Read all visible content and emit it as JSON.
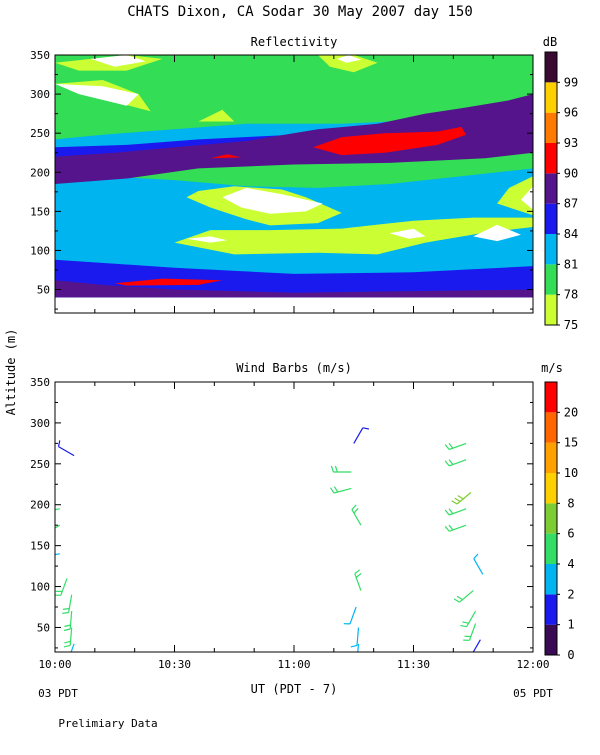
{
  "title": "CHATS Dixon, CA  Sodar  30 May 2007  day 150",
  "y_axis_label": "Altitude (m)",
  "x_axis_label": "UT  (PDT - 7)",
  "x_left_note": "03 PDT",
  "x_right_note": "05 PDT",
  "footer_note": "Prelimiary Data",
  "chart_data": [
    {
      "type": "heatmap",
      "title": "Reflectivity",
      "colorbar_unit": "dB",
      "x_ticks": [
        "10:00",
        "10:30",
        "11:00",
        "11:30",
        "12:00"
      ],
      "xlim_hours": [
        10.0,
        12.0
      ],
      "ylim": [
        20,
        350
      ],
      "y_ticks": [
        50,
        100,
        150,
        200,
        250,
        300,
        350
      ],
      "levels": [
        {
          "value": 75,
          "color": "#ccff33"
        },
        {
          "value": 78,
          "color": "#33dd55"
        },
        {
          "value": 81,
          "color": "#00b4f0"
        },
        {
          "value": 84,
          "color": "#1a1aee"
        },
        {
          "value": 87,
          "color": "#55148c"
        },
        {
          "value": 90,
          "color": "#ff0000"
        },
        {
          "value": 93,
          "color": "#ff7a00"
        },
        {
          "value": 96,
          "color": "#ffd000"
        },
        {
          "value": 99,
          "color": "#3a0a33"
        }
      ],
      "data_altitude_range": [
        40,
        350
      ],
      "base_level_color": "#ccff33",
      "bands": [
        {
          "level": 78,
          "pts": [
            [
              10.0,
              40
            ],
            [
              10.5,
              40
            ],
            [
              11.0,
              40
            ],
            [
              11.5,
              40
            ],
            [
              12.0,
              40
            ],
            [
              12.0,
              352
            ],
            [
              10.0,
              352
            ]
          ]
        },
        {
          "level": 81,
          "pts": [
            [
              10.0,
              40
            ],
            [
              12.0,
              40
            ],
            [
              12.0,
              205
            ],
            [
              11.7,
              195
            ],
            [
              11.4,
              185
            ],
            [
              11.1,
              180
            ],
            [
              10.8,
              182
            ],
            [
              10.5,
              190
            ],
            [
              10.2,
              195
            ],
            [
              10.0,
              200
            ]
          ]
        },
        {
          "level": 84,
          "pts": [
            [
              10.0,
              40
            ],
            [
              12.0,
              40
            ],
            [
              12.0,
              80
            ],
            [
              11.5,
              72
            ],
            [
              11.0,
              70
            ],
            [
              10.5,
              78
            ],
            [
              10.0,
              88
            ]
          ]
        },
        {
          "level": 87,
          "pts": [
            [
              10.0,
              40
            ],
            [
              12.0,
              40
            ],
            [
              12.0,
              50
            ],
            [
              11.5,
              48
            ],
            [
              11.0,
              46
            ],
            [
              10.5,
              50
            ],
            [
              10.2,
              56
            ],
            [
              10.0,
              62
            ]
          ]
        },
        {
          "level": 90,
          "pts": [
            [
              10.25,
              58
            ],
            [
              10.45,
              64
            ],
            [
              10.7,
              62
            ],
            [
              10.6,
              56
            ],
            [
              10.3,
              55
            ]
          ]
        },
        {
          "level": 81,
          "pts": [
            [
              10.0,
              215
            ],
            [
              10.4,
              228
            ],
            [
              10.8,
              232
            ],
            [
              11.2,
              235
            ],
            [
              11.6,
              230
            ],
            [
              12.0,
              238
            ],
            [
              12.0,
              262
            ],
            [
              11.6,
              268
            ],
            [
              11.2,
              262
            ],
            [
              10.8,
              262
            ],
            [
              10.5,
              255
            ],
            [
              10.2,
              248
            ],
            [
              10.0,
              242
            ]
          ]
        },
        {
          "level": 84,
          "pts": [
            [
              10.0,
              205
            ],
            [
              10.3,
              213
            ],
            [
              10.6,
              218
            ],
            [
              11.0,
              220
            ],
            [
              11.4,
              218
            ],
            [
              11.8,
              222
            ],
            [
              12.0,
              228
            ],
            [
              12.0,
              250
            ],
            [
              11.7,
              258
            ],
            [
              11.4,
              258
            ],
            [
              11.0,
              248
            ],
            [
              10.6,
              242
            ],
            [
              10.3,
              235
            ],
            [
              10.0,
              232
            ]
          ]
        },
        {
          "level": 87,
          "pts": [
            [
              10.0,
              185
            ],
            [
              10.3,
              192
            ],
            [
              10.6,
              205
            ],
            [
              11.0,
              210
            ],
            [
              11.4,
              212
            ],
            [
              11.8,
              218
            ],
            [
              12.0,
              225
            ],
            [
              12.0,
              300
            ],
            [
              11.9,
              292
            ],
            [
              11.7,
              282
            ],
            [
              11.55,
              275
            ],
            [
              11.35,
              262
            ],
            [
              11.1,
              255
            ],
            [
              10.8,
              240
            ],
            [
              10.5,
              232
            ],
            [
              10.25,
              225
            ],
            [
              10.0,
              220
            ]
          ]
        },
        {
          "level": 90,
          "pts": [
            [
              11.08,
              232
            ],
            [
              11.2,
              245
            ],
            [
              11.38,
              250
            ],
            [
              11.6,
              252
            ],
            [
              11.7,
              258
            ],
            [
              11.72,
              248
            ],
            [
              11.6,
              235
            ],
            [
              11.38,
              225
            ],
            [
              11.2,
              222
            ]
          ]
        },
        {
          "level": 90,
          "pts": [
            [
              10.65,
              218
            ],
            [
              10.72,
              223
            ],
            [
              10.78,
              219
            ]
          ]
        },
        {
          "level": 75,
          "pts": [
            [
              10.5,
              110
            ],
            [
              10.75,
              95
            ],
            [
              11.1,
              97
            ],
            [
              11.35,
              95
            ],
            [
              11.55,
              110
            ],
            [
              11.8,
              123
            ],
            [
              12.0,
              130
            ],
            [
              12.0,
              142
            ],
            [
              11.75,
              142
            ],
            [
              11.5,
              138
            ],
            [
              11.2,
              128
            ],
            [
              10.9,
              126
            ],
            [
              10.65,
              126
            ]
          ]
        },
        {
          "level": 75,
          "pts": [
            [
              10.75,
              182
            ],
            [
              10.95,
              178
            ],
            [
              11.05,
              168
            ],
            [
              11.2,
              148
            ],
            [
              11.1,
              135
            ],
            [
              10.9,
              132
            ],
            [
              10.8,
              140
            ],
            [
              10.65,
              155
            ],
            [
              10.55,
              168
            ],
            [
              10.6,
              176
            ]
          ]
        },
        {
          "level": 75,
          "pts": [
            [
              10.0,
              313
            ],
            [
              10.25,
              290
            ],
            [
              10.4,
              278
            ],
            [
              10.35,
              300
            ],
            [
              10.2,
              318
            ]
          ]
        },
        {
          "level": 75,
          "pts": [
            [
              10.0,
              340
            ],
            [
              10.3,
              350
            ],
            [
              10.45,
              345
            ],
            [
              10.3,
              330
            ],
            [
              10.1,
              330
            ]
          ]
        },
        {
          "level": 75,
          "pts": [
            [
              11.1,
              350
            ],
            [
              11.25,
              350
            ],
            [
              11.35,
              340
            ],
            [
              11.25,
              328
            ],
            [
              11.15,
              335
            ]
          ]
        },
        {
          "level": 75,
          "pts": [
            [
              11.85,
              160
            ],
            [
              12.0,
              145
            ],
            [
              12.0,
              195
            ],
            [
              11.9,
              180
            ]
          ]
        },
        {
          "level": 75,
          "pts": [
            [
              10.6,
              265
            ],
            [
              10.7,
              280
            ],
            [
              10.75,
              265
            ]
          ]
        }
      ],
      "white_patches": [
        [
          [
            10.0,
            313
          ],
          [
            10.1,
            300
          ],
          [
            10.3,
            285
          ],
          [
            10.35,
            300
          ],
          [
            10.2,
            310
          ]
        ],
        [
          [
            10.15,
            345
          ],
          [
            10.3,
            350
          ],
          [
            10.38,
            342
          ],
          [
            10.25,
            335
          ]
        ],
        [
          [
            10.8,
            180
          ],
          [
            10.95,
            172
          ],
          [
            11.12,
            160
          ],
          [
            11.05,
            150
          ],
          [
            10.9,
            147
          ],
          [
            10.78,
            155
          ],
          [
            10.7,
            168
          ]
        ],
        [
          [
            10.55,
            115
          ],
          [
            10.65,
            110
          ],
          [
            10.72,
            113
          ],
          [
            10.65,
            118
          ]
        ],
        [
          [
            11.4,
            122
          ],
          [
            11.48,
            115
          ],
          [
            11.55,
            118
          ],
          [
            11.5,
            128
          ]
        ],
        [
          [
            11.75,
            118
          ],
          [
            11.85,
            112
          ],
          [
            11.95,
            120
          ],
          [
            11.85,
            133
          ]
        ],
        [
          [
            11.95,
            165
          ],
          [
            12.0,
            152
          ],
          [
            12.0,
            182
          ]
        ],
        [
          [
            11.18,
            345
          ],
          [
            11.22,
            340
          ],
          [
            11.28,
            344
          ],
          [
            11.23,
            350
          ]
        ]
      ]
    },
    {
      "type": "barbs",
      "title": "Wind Barbs (m/s)",
      "colorbar_unit": "m/s",
      "x_ticks": [
        "10:00",
        "10:30",
        "11:00",
        "11:30",
        "12:00"
      ],
      "xlim_hours": [
        10.0,
        12.0
      ],
      "ylim": [
        20,
        350
      ],
      "y_ticks": [
        50,
        100,
        150,
        200,
        250,
        300,
        350
      ],
      "speed_levels": [
        {
          "value": 0,
          "color": "#3a0a55"
        },
        {
          "value": 1,
          "color": "#1a1aee"
        },
        {
          "value": 2,
          "color": "#00b4f0"
        },
        {
          "value": 4,
          "color": "#33dd66"
        },
        {
          "value": 6,
          "color": "#7dcc33"
        },
        {
          "value": 8,
          "color": "#ffd000"
        },
        {
          "value": 10,
          "color": "#ffa000"
        },
        {
          "value": 15,
          "color": "#ff6600"
        },
        {
          "value": 20,
          "color": "#ff0000"
        }
      ],
      "barbs": [
        {
          "t": 10.08,
          "alt": 260,
          "speed": 1.5,
          "dir": 300
        },
        {
          "t": 10.02,
          "alt": 195,
          "speed": 4.5,
          "dir": 260
        },
        {
          "t": 10.02,
          "alt": 175,
          "speed": 4.5,
          "dir": 240
        },
        {
          "t": 10.02,
          "alt": 140,
          "speed": 2.5,
          "dir": 260
        },
        {
          "t": 10.05,
          "alt": 110,
          "speed": 4.5,
          "dir": 200
        },
        {
          "t": 10.07,
          "alt": 90,
          "speed": 4.5,
          "dir": 190
        },
        {
          "t": 10.07,
          "alt": 70,
          "speed": 4.5,
          "dir": 185
        },
        {
          "t": 10.07,
          "alt": 50,
          "speed": 4.5,
          "dir": 185
        },
        {
          "t": 10.08,
          "alt": 30,
          "speed": 3.0,
          "dir": 200
        },
        {
          "t": 11.25,
          "alt": 275,
          "speed": 1.5,
          "dir": 30
        },
        {
          "t": 11.24,
          "alt": 240,
          "speed": 4.5,
          "dir": 270
        },
        {
          "t": 11.24,
          "alt": 220,
          "speed": 5.5,
          "dir": 255
        },
        {
          "t": 11.28,
          "alt": 175,
          "speed": 4.5,
          "dir": 330
        },
        {
          "t": 11.28,
          "alt": 95,
          "speed": 4.5,
          "dir": 340
        },
        {
          "t": 11.26,
          "alt": 75,
          "speed": 3.0,
          "dir": 200
        },
        {
          "t": 11.27,
          "alt": 50,
          "speed": 3.0,
          "dir": 185
        },
        {
          "t": 11.27,
          "alt": 30,
          "speed": 2.5,
          "dir": 185
        },
        {
          "t": 11.72,
          "alt": 275,
          "speed": 5.5,
          "dir": 250
        },
        {
          "t": 11.72,
          "alt": 255,
          "speed": 5.5,
          "dir": 250
        },
        {
          "t": 11.74,
          "alt": 215,
          "speed": 6.5,
          "dir": 230
        },
        {
          "t": 11.72,
          "alt": 195,
          "speed": 5.5,
          "dir": 250
        },
        {
          "t": 11.72,
          "alt": 175,
          "speed": 5.5,
          "dir": 250
        },
        {
          "t": 11.79,
          "alt": 115,
          "speed": 3.0,
          "dir": 330
        },
        {
          "t": 11.75,
          "alt": 95,
          "speed": 4.5,
          "dir": 230
        },
        {
          "t": 11.76,
          "alt": 70,
          "speed": 4.5,
          "dir": 210
        },
        {
          "t": 11.76,
          "alt": 55,
          "speed": 4.5,
          "dir": 200
        },
        {
          "t": 11.78,
          "alt": 35,
          "speed": 1.5,
          "dir": 210
        }
      ]
    }
  ]
}
